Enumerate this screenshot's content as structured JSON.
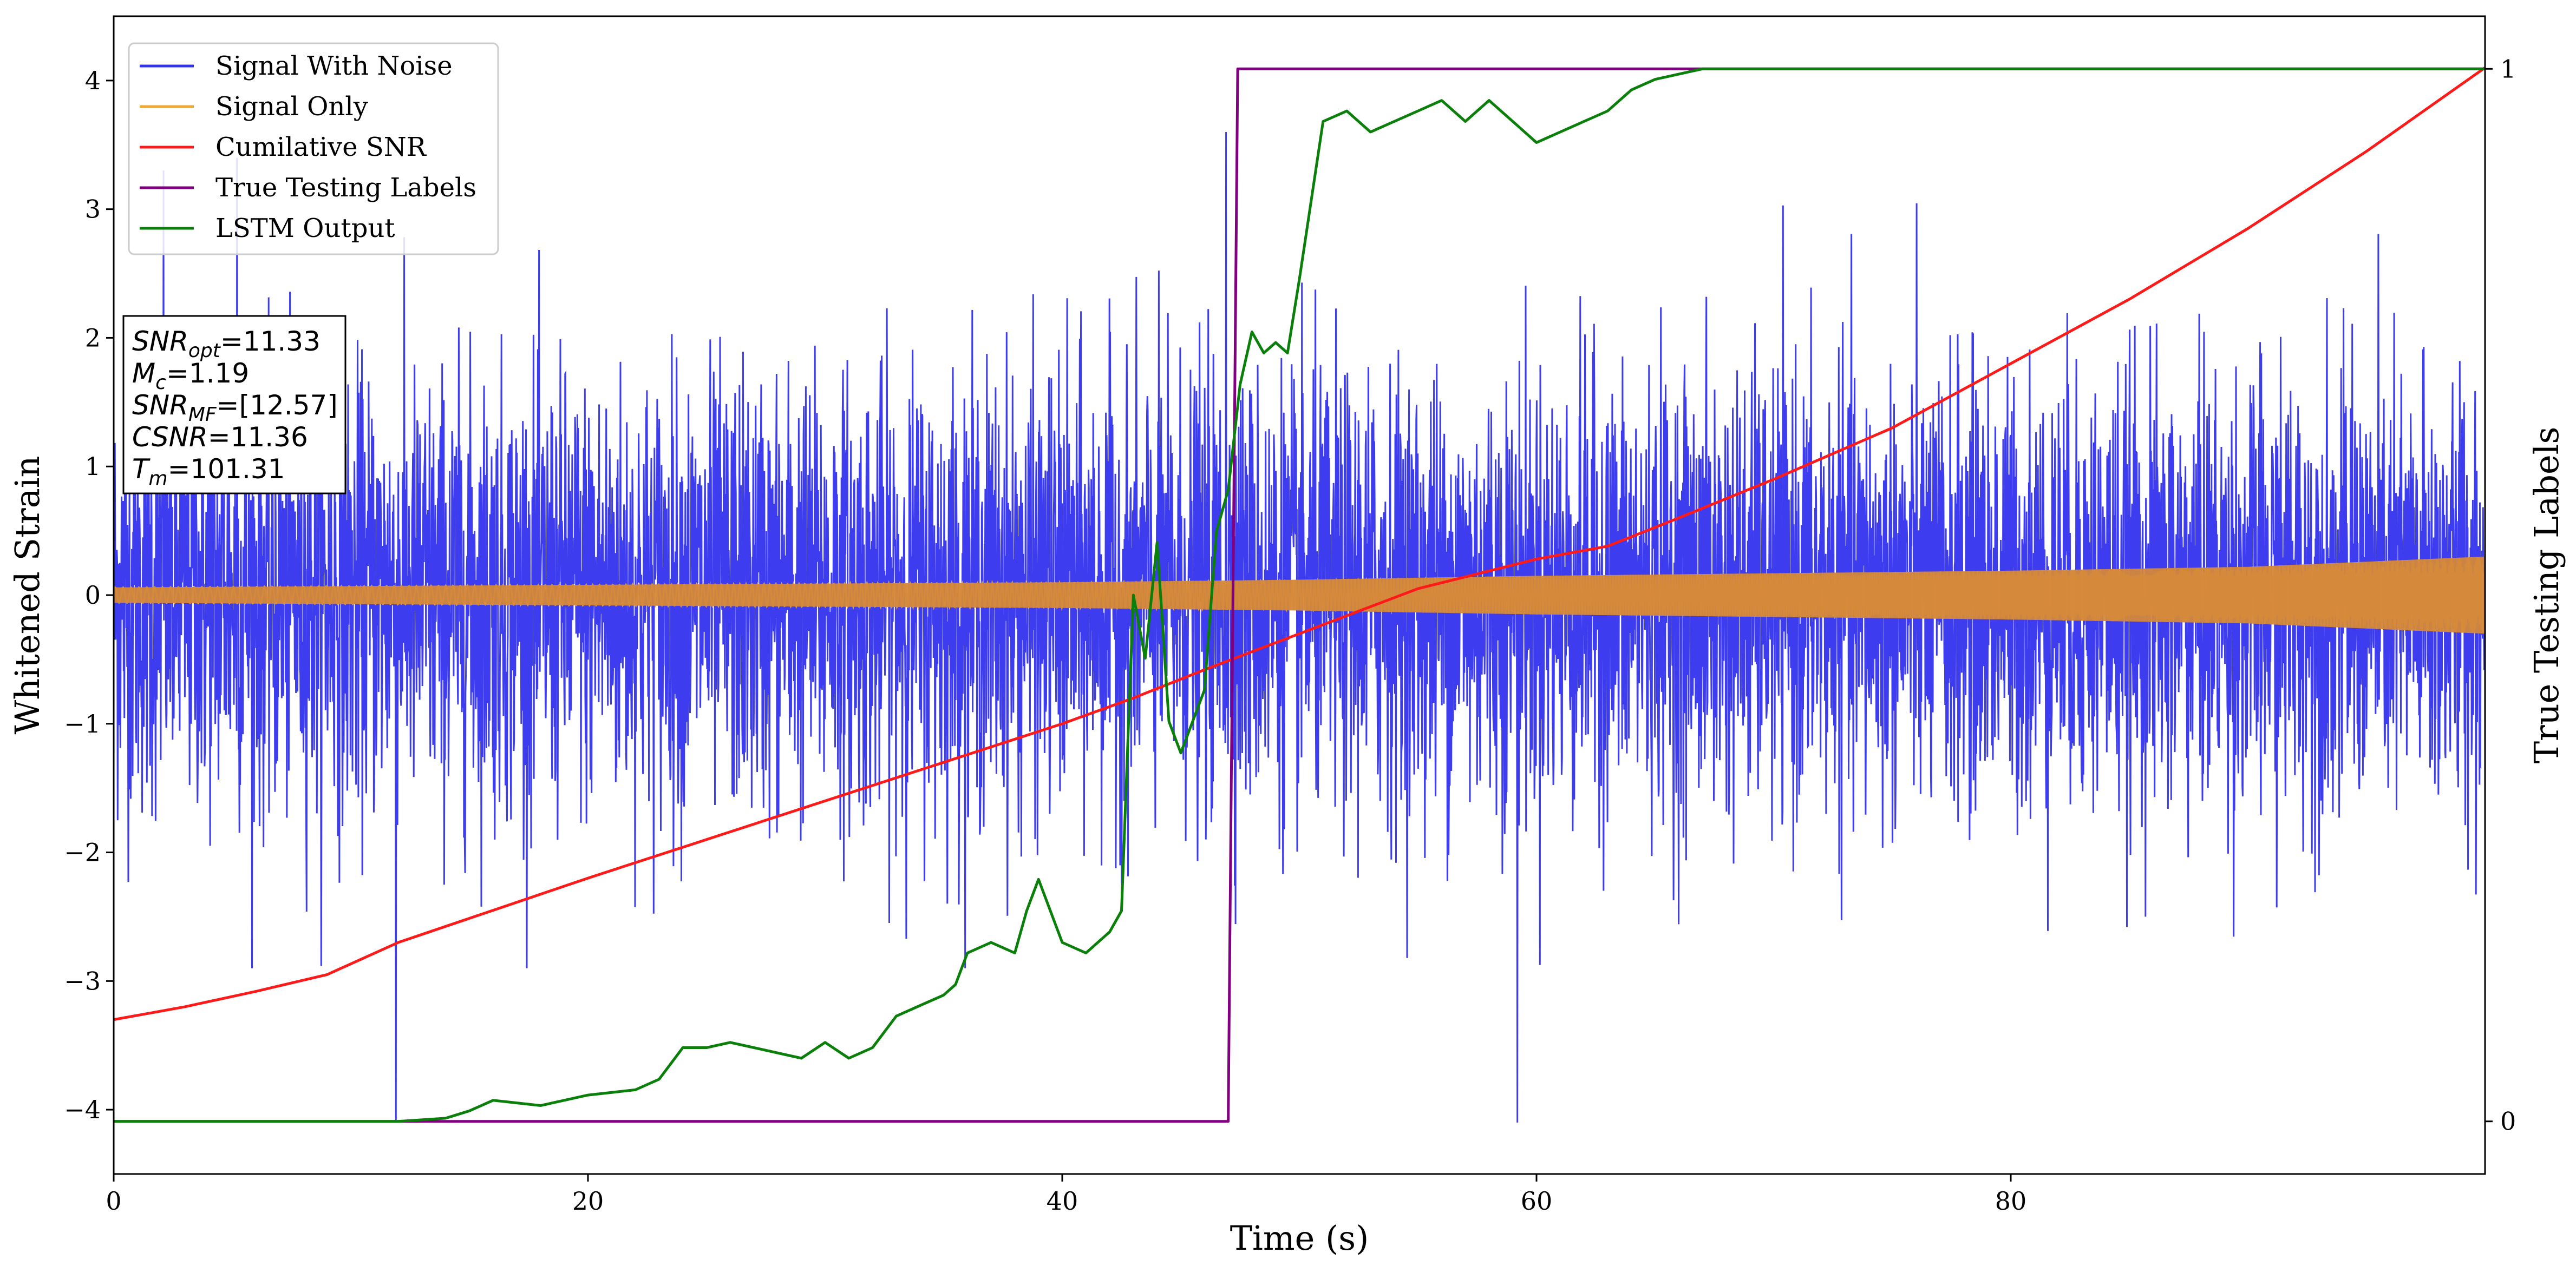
{
  "chart_data": {
    "type": "line",
    "xlabel": "Time (s)",
    "ylabel": "Whitened Strain",
    "y2label": "True Testing Labels",
    "xlim": [
      0,
      100
    ],
    "ylim": [
      -4.5,
      4.5
    ],
    "y2lim": [
      -0.05,
      1.05
    ],
    "xticks": [
      0,
      20,
      40,
      60,
      80
    ],
    "yticks": [
      -4,
      -3,
      -2,
      -1,
      0,
      1,
      2,
      3,
      4
    ],
    "y2ticks": [
      0,
      1
    ],
    "grid": false,
    "legend_position": "top-left",
    "annotation": [
      {
        "name": "SNR",
        "sub": "opt",
        "value": "=11.33"
      },
      {
        "name": "M",
        "sub": "c",
        "value": "=1.19"
      },
      {
        "name": "SNR",
        "sub": "MF",
        "value": "=[12.57]"
      },
      {
        "name": "CSNR",
        "sub": "",
        "value": "=11.36"
      },
      {
        "name": "T",
        "sub": "m",
        "value": "=101.31"
      }
    ],
    "series": [
      {
        "name": "Signal With Noise",
        "color": "#3333ee",
        "axis": "left",
        "style": "dense-noise",
        "mean": 0.0,
        "std": 0.85,
        "typical_range": [
          -2.9,
          3.6
        ],
        "extremes": [
          [
            11.9,
            -4.1
          ],
          [
            59.2,
            -4.1
          ],
          [
            46.9,
            3.6
          ],
          [
            2.1,
            3.3
          ],
          [
            5.2,
            3.4
          ]
        ]
      },
      {
        "name": "Signal Only",
        "color": "#f0a830",
        "axis": "left",
        "style": "chirp-envelope",
        "envelope_x": [
          0,
          20,
          40,
          50,
          60,
          70,
          80,
          90,
          100
        ],
        "envelope_y": [
          0.06,
          0.08,
          0.1,
          0.12,
          0.15,
          0.17,
          0.19,
          0.22,
          0.3
        ]
      },
      {
        "name": "Cumilative SNR",
        "color": "#ff1a1a",
        "axis": "left",
        "x": [
          0,
          3,
          6,
          9,
          12,
          16,
          20,
          25,
          30,
          35,
          40,
          43,
          46,
          50,
          55,
          60,
          63,
          66,
          70,
          75,
          80,
          85,
          90,
          95,
          100
        ],
        "y": [
          -3.3,
          -3.2,
          -3.08,
          -2.95,
          -2.7,
          -2.45,
          -2.2,
          -1.9,
          -1.6,
          -1.3,
          -1.0,
          -0.8,
          -0.58,
          -0.3,
          0.05,
          0.28,
          0.38,
          0.6,
          0.9,
          1.3,
          1.8,
          2.3,
          2.85,
          3.45,
          4.1
        ]
      },
      {
        "name": "True Testing Labels",
        "color": "#800080",
        "axis": "right",
        "x": [
          0,
          47.0,
          47.4,
          100
        ],
        "y": [
          0,
          0,
          1,
          1
        ]
      },
      {
        "name": "LSTM Output",
        "color": "#0a800a",
        "axis": "right",
        "x": [
          0,
          12,
          14,
          15,
          16,
          18,
          20,
          22,
          23,
          24,
          25,
          26,
          27,
          29,
          30,
          31,
          32,
          33,
          34,
          35,
          35.5,
          36,
          37,
          38,
          38.5,
          39,
          40,
          41,
          42,
          42.5,
          43,
          43.5,
          44,
          44.5,
          45,
          45.5,
          46,
          46.5,
          47,
          47.5,
          48,
          48.5,
          49,
          49.5,
          50,
          51,
          52,
          53,
          54,
          55,
          56,
          57,
          58,
          59,
          60,
          61,
          62,
          63,
          64,
          65,
          67,
          70,
          72,
          75,
          100
        ],
        "y": [
          0,
          0,
          0.003,
          0.01,
          0.02,
          0.015,
          0.025,
          0.03,
          0.04,
          0.07,
          0.07,
          0.075,
          0.07,
          0.06,
          0.075,
          0.06,
          0.07,
          0.1,
          0.11,
          0.12,
          0.13,
          0.16,
          0.17,
          0.16,
          0.2,
          0.23,
          0.17,
          0.16,
          0.18,
          0.2,
          0.5,
          0.44,
          0.55,
          0.38,
          0.35,
          0.38,
          0.41,
          0.56,
          0.6,
          0.7,
          0.75,
          0.73,
          0.74,
          0.73,
          0.8,
          0.95,
          0.96,
          0.94,
          0.95,
          0.96,
          0.97,
          0.95,
          0.97,
          0.95,
          0.93,
          0.94,
          0.95,
          0.96,
          0.98,
          0.99,
          1.0,
          1.0,
          1.0,
          1.0,
          1.0
        ]
      }
    ]
  }
}
